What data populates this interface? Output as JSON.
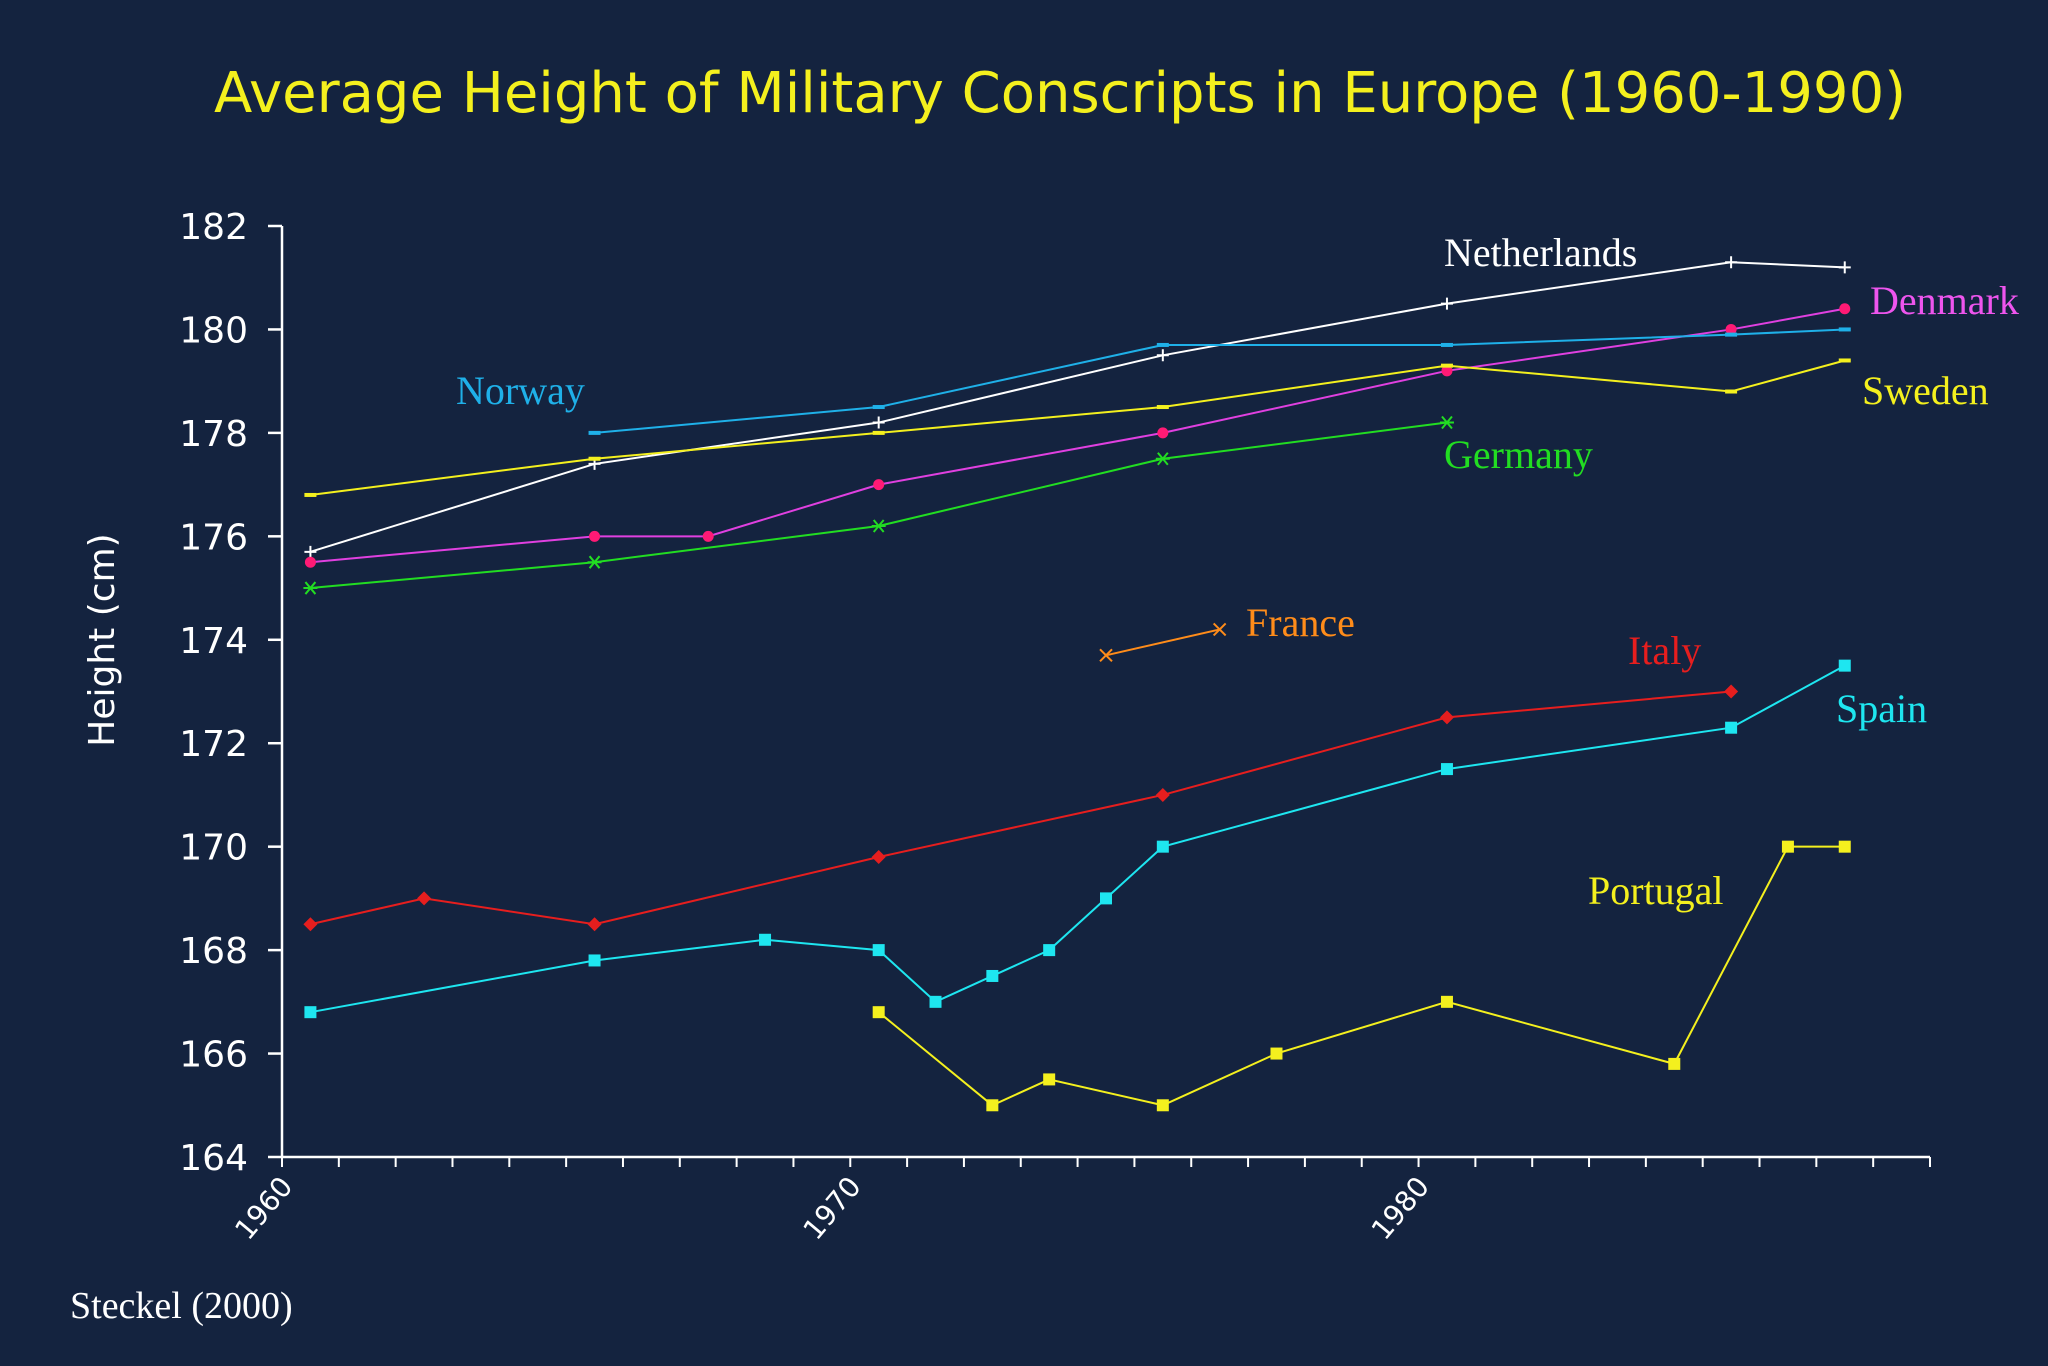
{
  "chart_data": {
    "type": "line",
    "title": "Average Height of Military Conscripts in Europe (1960-1990)",
    "xlabel": "",
    "ylabel": "Height (cm)",
    "xlim": [
      1960,
      1989
    ],
    "ylim": [
      164,
      182
    ],
    "yticks": [
      164,
      166,
      168,
      170,
      172,
      174,
      176,
      178,
      180,
      182
    ],
    "xticks": [
      1960,
      1970,
      1980
    ],
    "xtick_labels": [
      "1960",
      "1970",
      "1980"
    ],
    "source": "Steckel (2000)",
    "series": [
      {
        "name": "Netherlands",
        "color": "#ffffff",
        "marker": "plus",
        "x": [
          1960.5,
          1965.5,
          1970.5,
          1975.5,
          1980.5,
          1985.5,
          1987.5
        ],
        "y": [
          175.7,
          177.4,
          178.2,
          179.5,
          180.5,
          181.3,
          181.2
        ]
      },
      {
        "name": "Denmark",
        "color": "#e040e0",
        "marker": "dot",
        "markerColor": "#ff1a75",
        "x": [
          1960.5,
          1965.5,
          1967.5,
          1970.5,
          1975.5,
          1980.5,
          1985.5,
          1987.5
        ],
        "y": [
          175.5,
          176.0,
          176.0,
          177.0,
          178.0,
          179.2,
          180.0,
          180.4
        ]
      },
      {
        "name": "Norway",
        "color": "#1fb0e8",
        "marker": "dash",
        "x": [
          1965.5,
          1970.5,
          1975.5,
          1980.5,
          1985.5,
          1987.5
        ],
        "y": [
          178.0,
          178.5,
          179.7,
          179.7,
          179.9,
          180.0
        ]
      },
      {
        "name": "Sweden",
        "color": "#f4f01e",
        "marker": "dash",
        "x": [
          1960.5,
          1965.5,
          1970.5,
          1975.5,
          1980.5,
          1985.5,
          1987.5
        ],
        "y": [
          176.8,
          177.5,
          178.0,
          178.5,
          179.3,
          178.8,
          179.4
        ]
      },
      {
        "name": "Germany",
        "color": "#22dd22",
        "marker": "asterisk",
        "x": [
          1960.5,
          1965.5,
          1970.5,
          1975.5,
          1980.5
        ],
        "y": [
          175.0,
          175.5,
          176.2,
          177.5,
          178.2
        ]
      },
      {
        "name": "France",
        "color": "#ff8c1a",
        "marker": "x",
        "x": [
          1974.5,
          1976.5
        ],
        "y": [
          173.7,
          174.2
        ]
      },
      {
        "name": "Italy",
        "color": "#e61e1e",
        "marker": "diamond",
        "x": [
          1960.5,
          1962.5,
          1965.5,
          1970.5,
          1975.5,
          1980.5,
          1985.5
        ],
        "y": [
          168.5,
          169.0,
          168.5,
          169.8,
          171.0,
          172.5,
          173.0
        ]
      },
      {
        "name": "Spain",
        "color": "#1ee6f0",
        "marker": "square",
        "x": [
          1960.5,
          1965.5,
          1968.5,
          1970.5,
          1971.5,
          1972.5,
          1973.5,
          1974.5,
          1975.5,
          1980.5,
          1985.5,
          1987.5
        ],
        "y": [
          166.8,
          167.8,
          168.2,
          168.0,
          167.0,
          167.5,
          168.0,
          169.0,
          170.0,
          171.5,
          172.3,
          173.5
        ]
      },
      {
        "name": "Portugal",
        "color": "#f4f01e",
        "marker": "square",
        "x": [
          1970.5,
          1972.5,
          1973.5,
          1975.5,
          1977.5,
          1980.5,
          1984.5,
          1986.5,
          1987.5
        ],
        "y": [
          166.8,
          165.0,
          165.5,
          165.0,
          166.0,
          167.0,
          165.8,
          170.0,
          170.0
        ]
      }
    ]
  }
}
